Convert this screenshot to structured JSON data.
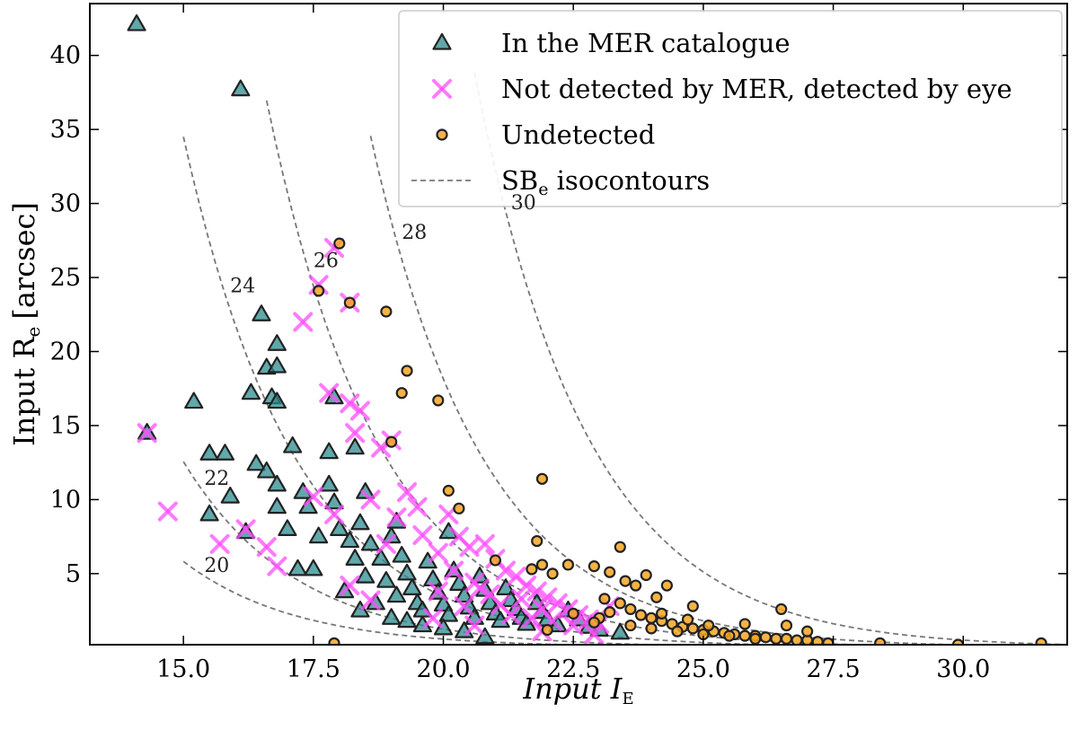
{
  "chart_data": {
    "type": "scatter",
    "xlabel": "Input I",
    "xlabel_sub": "E",
    "ylabel": "Input R",
    "ylabel_sub": "e",
    "ylabel_unit": "[arcsec]",
    "xlim": [
      13.2,
      32.0
    ],
    "ylim": [
      0.2,
      43.5
    ],
    "xticks": [
      15.0,
      17.5,
      20.0,
      22.5,
      25.0,
      27.5,
      30.0
    ],
    "xtick_labels": [
      "15.0",
      "17.5",
      "20.0",
      "22.5",
      "25.0",
      "27.5",
      "30.0"
    ],
    "yticks": [
      5,
      10,
      15,
      20,
      25,
      30,
      35,
      40
    ],
    "ytick_labels": [
      "5",
      "10",
      "15",
      "20",
      "25",
      "30",
      "35",
      "40"
    ],
    "legend_position": "top-right",
    "legend": [
      {
        "label": "In the MER catalogue",
        "marker": "triangle"
      },
      {
        "label": "Not detected by MER, detected by eye",
        "marker": "x"
      },
      {
        "label": "Undetected",
        "marker": "circle"
      },
      {
        "label": "SB",
        "label_sub": "e",
        "label_after": " isocontours",
        "marker": "dashed-line"
      }
    ],
    "isocontours": [
      {
        "label": "20",
        "x_range": [
          15.0,
          23.0
        ],
        "label_x": 15.4,
        "label_y": 5.1
      },
      {
        "label": "22",
        "x_range": [
          15.0,
          25.0
        ],
        "label_x": 15.4,
        "label_y": 11.0
      },
      {
        "label": "24",
        "x_range": [
          15.0,
          27.5
        ],
        "label_x": 15.9,
        "label_y": 24.0
      },
      {
        "label": "26",
        "x_range": [
          16.6,
          29.5
        ],
        "label_x": 17.5,
        "label_y": 25.7
      },
      {
        "label": "28",
        "x_range": [
          18.6,
          31.5
        ],
        "label_x": 19.2,
        "label_y": 27.6
      },
      {
        "label": "30",
        "x_range": [
          20.6,
          32.0
        ],
        "label_x": 21.3,
        "label_y": 29.6
      }
    ],
    "series": [
      {
        "name": "In the MER catalogue",
        "marker": "triangle",
        "color": "#2b8b8f",
        "edge": "#222222",
        "points": [
          [
            14.1,
            42.1
          ],
          [
            16.1,
            37.7
          ],
          [
            14.3,
            14.5
          ],
          [
            15.2,
            16.6
          ],
          [
            16.5,
            22.5
          ],
          [
            16.8,
            20.5
          ],
          [
            16.6,
            18.9
          ],
          [
            16.8,
            19.0
          ],
          [
            16.3,
            17.2
          ],
          [
            16.7,
            16.9
          ],
          [
            16.8,
            16.6
          ],
          [
            15.5,
            13.1
          ],
          [
            15.8,
            13.1
          ],
          [
            16.4,
            12.4
          ],
          [
            16.6,
            11.9
          ],
          [
            16.8,
            11.0
          ],
          [
            17.1,
            13.6
          ],
          [
            15.5,
            9.0
          ],
          [
            15.9,
            10.2
          ],
          [
            16.2,
            7.8
          ],
          [
            16.8,
            9.5
          ],
          [
            17.0,
            8.0
          ],
          [
            17.3,
            10.5
          ],
          [
            17.2,
            5.3
          ],
          [
            17.5,
            5.3
          ],
          [
            17.6,
            7.5
          ],
          [
            17.8,
            13.2
          ],
          [
            17.8,
            11.0
          ],
          [
            17.9,
            9.8
          ],
          [
            18.0,
            8.0
          ],
          [
            18.2,
            7.2
          ],
          [
            18.3,
            6.0
          ],
          [
            17.9,
            16.9
          ],
          [
            18.3,
            13.5
          ],
          [
            18.5,
            10.5
          ],
          [
            18.4,
            8.4
          ],
          [
            18.6,
            7.0
          ],
          [
            18.8,
            6.0
          ],
          [
            18.9,
            4.5
          ],
          [
            19.1,
            3.5
          ],
          [
            19.0,
            7.5
          ],
          [
            19.2,
            6.2
          ],
          [
            19.3,
            5.0
          ],
          [
            19.4,
            4.0
          ],
          [
            19.5,
            3.0
          ],
          [
            19.6,
            2.5
          ],
          [
            19.7,
            5.8
          ],
          [
            19.8,
            4.6
          ],
          [
            19.9,
            3.7
          ],
          [
            20.0,
            2.9
          ],
          [
            20.1,
            2.2
          ],
          [
            20.2,
            5.2
          ],
          [
            20.3,
            4.3
          ],
          [
            20.4,
            3.5
          ],
          [
            20.5,
            2.7
          ],
          [
            20.6,
            2.0
          ],
          [
            20.7,
            4.8
          ],
          [
            20.8,
            3.9
          ],
          [
            20.9,
            3.0
          ],
          [
            21.0,
            2.3
          ],
          [
            21.1,
            1.8
          ],
          [
            21.2,
            4.0
          ],
          [
            21.3,
            3.2
          ],
          [
            21.4,
            2.6
          ],
          [
            21.5,
            2.0
          ],
          [
            21.6,
            1.6
          ],
          [
            21.8,
            3.0
          ],
          [
            21.9,
            2.4
          ],
          [
            22.0,
            1.9
          ],
          [
            22.2,
            1.5
          ],
          [
            22.4,
            2.5
          ],
          [
            22.6,
            1.9
          ],
          [
            22.8,
            1.4
          ],
          [
            23.0,
            1.2
          ],
          [
            20.8,
            0.7
          ],
          [
            23.4,
            1.0
          ],
          [
            18.5,
            4.8
          ],
          [
            18.7,
            3.0
          ],
          [
            19.0,
            2.0
          ],
          [
            19.3,
            1.8
          ],
          [
            19.6,
            1.5
          ],
          [
            20.0,
            1.3
          ],
          [
            20.4,
            1.1
          ],
          [
            18.1,
            3.8
          ],
          [
            18.4,
            2.5
          ],
          [
            17.4,
            9.5
          ],
          [
            19.1,
            8.5
          ],
          [
            20.1,
            7.8
          ]
        ]
      },
      {
        "name": "Not detected by MER, detected by eye",
        "marker": "x",
        "color": "#ff4dff",
        "points": [
          [
            17.9,
            27.0
          ],
          [
            17.6,
            24.5
          ],
          [
            18.2,
            23.3
          ],
          [
            17.3,
            22.0
          ],
          [
            17.8,
            17.2
          ],
          [
            18.2,
            16.5
          ],
          [
            18.4,
            16.0
          ],
          [
            18.3,
            14.5
          ],
          [
            19.0,
            14.0
          ],
          [
            18.8,
            13.5
          ],
          [
            19.3,
            10.5
          ],
          [
            19.5,
            9.5
          ],
          [
            19.1,
            8.8
          ],
          [
            20.1,
            9.0
          ],
          [
            20.3,
            7.5
          ],
          [
            20.5,
            6.8
          ],
          [
            20.8,
            7.0
          ],
          [
            21.0,
            6.0
          ],
          [
            21.2,
            5.2
          ],
          [
            21.4,
            4.8
          ],
          [
            21.6,
            4.2
          ],
          [
            21.8,
            3.8
          ],
          [
            22.0,
            3.4
          ],
          [
            22.2,
            3.0
          ],
          [
            22.4,
            2.6
          ],
          [
            22.6,
            2.2
          ],
          [
            22.8,
            1.9
          ],
          [
            23.0,
            1.6
          ],
          [
            14.3,
            14.5
          ],
          [
            14.7,
            9.2
          ],
          [
            15.7,
            7.0
          ],
          [
            16.2,
            8.0
          ],
          [
            16.6,
            6.8
          ],
          [
            16.8,
            5.5
          ],
          [
            17.5,
            10.2
          ],
          [
            17.9,
            9.0
          ],
          [
            18.6,
            10.0
          ],
          [
            18.9,
            7.0
          ],
          [
            19.6,
            7.6
          ],
          [
            19.9,
            6.4
          ],
          [
            20.2,
            5.2
          ],
          [
            20.6,
            4.4
          ],
          [
            20.9,
            3.6
          ],
          [
            21.1,
            2.9
          ],
          [
            21.3,
            2.2
          ],
          [
            21.7,
            2.0
          ],
          [
            22.1,
            1.8
          ],
          [
            22.5,
            1.5
          ],
          [
            18.2,
            4.2
          ],
          [
            18.6,
            3.2
          ],
          [
            19.8,
            2.0
          ],
          [
            20.6,
            1.5
          ],
          [
            21.9,
            1.1
          ],
          [
            22.9,
            0.9
          ],
          [
            23.2,
            2.8
          ],
          [
            21.5,
            3.3
          ],
          [
            20.4,
            2.8
          ],
          [
            19.9,
            3.8
          ],
          [
            20.7,
            4.0
          ],
          [
            21.9,
            2.6
          ]
        ]
      },
      {
        "name": "Undetected",
        "marker": "circle",
        "color": "#f5a623",
        "edge": "#222222",
        "points": [
          [
            18.0,
            27.3
          ],
          [
            17.6,
            24.1
          ],
          [
            18.2,
            23.3
          ],
          [
            18.9,
            22.7
          ],
          [
            19.3,
            18.7
          ],
          [
            19.2,
            17.2
          ],
          [
            19.9,
            16.7
          ],
          [
            19.0,
            13.9
          ],
          [
            21.9,
            11.4
          ],
          [
            20.1,
            10.6
          ],
          [
            20.3,
            9.4
          ],
          [
            21.8,
            7.2
          ],
          [
            21.0,
            5.9
          ],
          [
            21.7,
            5.3
          ],
          [
            21.9,
            5.6
          ],
          [
            22.1,
            5.0
          ],
          [
            22.4,
            5.6
          ],
          [
            22.9,
            5.5
          ],
          [
            23.2,
            5.1
          ],
          [
            23.4,
            6.8
          ],
          [
            23.5,
            4.5
          ],
          [
            23.7,
            4.2
          ],
          [
            23.9,
            4.9
          ],
          [
            24.1,
            3.4
          ],
          [
            24.3,
            4.2
          ],
          [
            24.8,
            2.8
          ],
          [
            26.5,
            2.6
          ],
          [
            23.4,
            3.0
          ],
          [
            23.6,
            2.6
          ],
          [
            23.8,
            2.2
          ],
          [
            24.0,
            2.0
          ],
          [
            24.2,
            1.8
          ],
          [
            24.4,
            1.6
          ],
          [
            24.6,
            1.4
          ],
          [
            24.8,
            1.3
          ],
          [
            25.0,
            1.2
          ],
          [
            25.2,
            1.1
          ],
          [
            25.4,
            1.0
          ],
          [
            25.6,
            0.9
          ],
          [
            25.8,
            0.8
          ],
          [
            26.0,
            0.8
          ],
          [
            26.2,
            0.7
          ],
          [
            26.4,
            0.6
          ],
          [
            26.6,
            0.6
          ],
          [
            26.8,
            0.5
          ],
          [
            27.0,
            0.5
          ],
          [
            27.2,
            0.4
          ],
          [
            23.2,
            2.4
          ],
          [
            23.0,
            2.0
          ],
          [
            22.9,
            1.7
          ],
          [
            23.6,
            1.5
          ],
          [
            24.0,
            1.3
          ],
          [
            24.5,
            1.1
          ],
          [
            25.0,
            0.9
          ],
          [
            25.5,
            0.8
          ],
          [
            26.0,
            0.6
          ],
          [
            27.0,
            1.1
          ],
          [
            27.4,
            0.3
          ],
          [
            28.4,
            0.3
          ],
          [
            31.5,
            0.3
          ],
          [
            29.9,
            0.2
          ],
          [
            17.9,
            0.3
          ],
          [
            22.0,
            1.2
          ],
          [
            22.5,
            2.3
          ],
          [
            23.1,
            3.3
          ],
          [
            25.1,
            1.5
          ],
          [
            25.8,
            1.6
          ],
          [
            26.6,
            1.5
          ],
          [
            24.2,
            2.3
          ],
          [
            24.7,
            1.9
          ]
        ]
      }
    ]
  }
}
